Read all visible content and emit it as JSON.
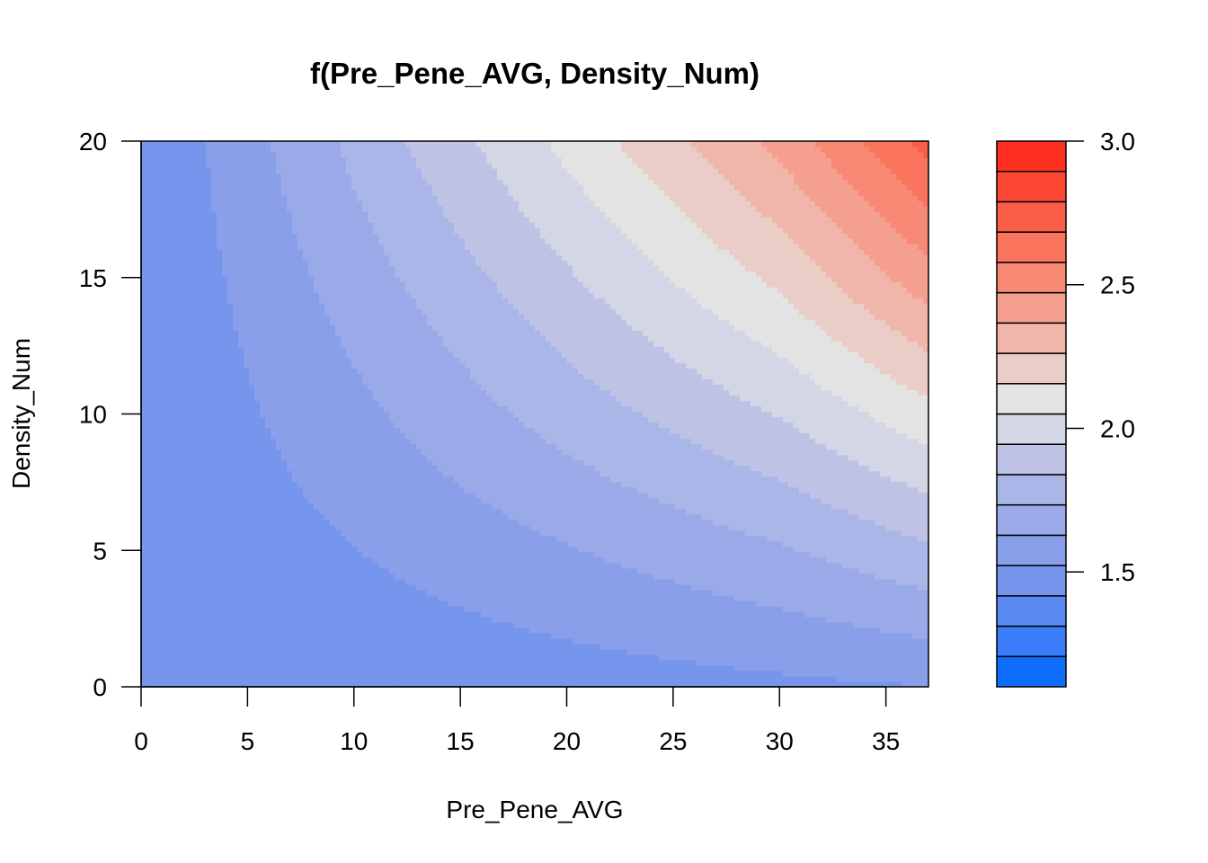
{
  "chart_data": {
    "type": "contour",
    "title": "f(Pre_Pene_AVG, Density_Num)",
    "xlabel": "Pre_Pene_AVG",
    "ylabel": "Density_Num",
    "xlim": [
      0,
      37
    ],
    "ylim": [
      0,
      20
    ],
    "x_ticks": [
      0,
      5,
      10,
      15,
      20,
      25,
      30,
      35
    ],
    "y_ticks": [
      0,
      5,
      10,
      15,
      20
    ],
    "colorbar": {
      "range": [
        1.1,
        3.0
      ],
      "ticks": [
        1.5,
        2.0,
        2.5,
        3.0
      ],
      "tick_labels": [
        "1.5",
        "2.0",
        "2.5",
        "3.0"
      ],
      "level_colors": [
        "#0d6efd",
        "#3a7df8",
        "#5a8bf2",
        "#7695ec",
        "#8a9fea",
        "#9aaae9",
        "#abb6e8",
        "#bec3e6",
        "#d2d6e5",
        "#e3e3e3",
        "#ebcdc7",
        "#f0b6aa",
        "#f5a08e",
        "#f88a75",
        "#fa745e",
        "#fb5e48",
        "#fd4733",
        "#ff2f20"
      ]
    },
    "surface_samples": {
      "x": [
        0,
        10,
        20,
        30,
        37
      ],
      "y": [
        0,
        5,
        10,
        15,
        20
      ],
      "z": [
        [
          1.42,
          1.44,
          1.47,
          1.5,
          1.52
        ],
        [
          1.42,
          1.52,
          1.62,
          1.72,
          1.82
        ],
        [
          1.42,
          1.6,
          1.78,
          1.95,
          2.12
        ],
        [
          1.42,
          1.68,
          1.93,
          2.18,
          2.43
        ],
        [
          1.42,
          1.76,
          2.08,
          2.4,
          2.72
        ]
      ]
    }
  }
}
